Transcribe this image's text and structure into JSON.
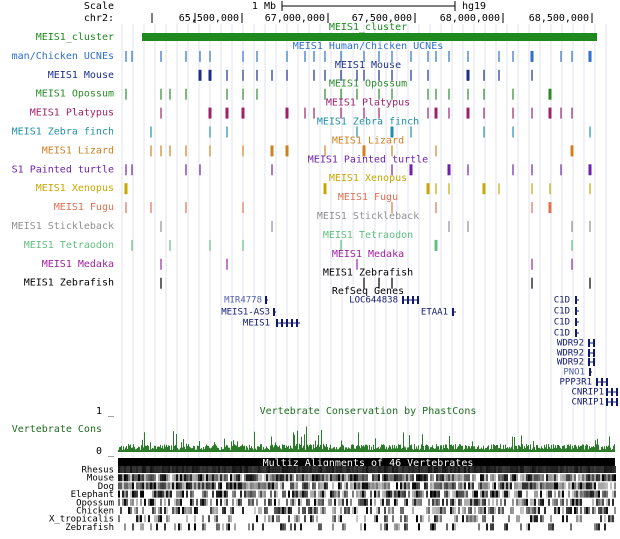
{
  "header": {
    "scale_label": "Scale",
    "scale_value": "1 Mb",
    "assembly": "hg19",
    "chrom": "chr2:",
    "positions": [
      "65,500,000",
      "67,000,000",
      "67,500,000",
      "68,000,000",
      "68,500,000"
    ]
  },
  "tracks": [
    {
      "label": "MEIS1_cluster",
      "title": "MEIS1_cluster",
      "color": "#1e8a1e"
    },
    {
      "label": "man/Chicken UCNEs",
      "title": "MEIS1 Human/Chicken UCNEs",
      "color": "#2f6fcf"
    },
    {
      "label": "MEIS1 Mouse",
      "title": "MEIS1 Mouse",
      "color": "#1b2f8a"
    },
    {
      "label": "MEIS1 Opossum",
      "title": "MEIS1 Opossum",
      "color": "#2a8a2a"
    },
    {
      "label": "MEIS1 Platypus",
      "title": "MEIS1 Platypus",
      "color": "#a0206a"
    },
    {
      "label": "MEIS1 Zebra finch",
      "title": "MEIS1 Zebra finch",
      "color": "#2090a8"
    },
    {
      "label": "MEIS1 Lizard",
      "title": "MEIS1 Lizard",
      "color": "#d08020"
    },
    {
      "label": "S1 Painted turtle",
      "title": "MEIS1 Painted turtle",
      "color": "#7020a8"
    },
    {
      "label": "MEIS1 Xenopus",
      "title": "MEIS1 Xenopus",
      "color": "#c8a800"
    },
    {
      "label": "MEIS1 Fugu",
      "title": "MEIS1 Fugu",
      "color": "#e07050"
    },
    {
      "label": "MEIS1 Stickleback",
      "title": "MEIS1 Stickleback",
      "color": "#909090"
    },
    {
      "label": "MEIS1 Tetraodon",
      "title": "MEIS1 Tetraodon",
      "color": "#60c080"
    },
    {
      "label": "MEIS1 Medaka",
      "title": "MEIS1 Medaka",
      "color": "#a020a0"
    },
    {
      "label": "MEIS1 Zebrafish",
      "title": "MEIS1 Zebrafish",
      "color": "#000000"
    }
  ],
  "refseq": {
    "title": "RefSeq Genes",
    "genes": [
      "MIR4778",
      "MEIS1-AS3",
      "MEIS1",
      "LOC644838",
      "ETAA1",
      "C1D",
      "C1D",
      "C1D",
      "C1D",
      "WDR92",
      "WDR92",
      "WDR92",
      "PNO1",
      "PPP3R1",
      "CNRIP1",
      "CNRIP1"
    ]
  },
  "conservation": {
    "title": "Vertebrate Conservation by PhastCons",
    "label": "Vertebrate Cons",
    "top": "1 _",
    "bottom": "0 _"
  },
  "multiz": {
    "title": "Multiz Alignments of 46 Vertebrates",
    "species": [
      "Rhesus",
      "Mouse",
      "Dog",
      "Elephant",
      "Opossum",
      "Chicken",
      "X_tropicalis",
      "Zebrafish"
    ]
  }
}
